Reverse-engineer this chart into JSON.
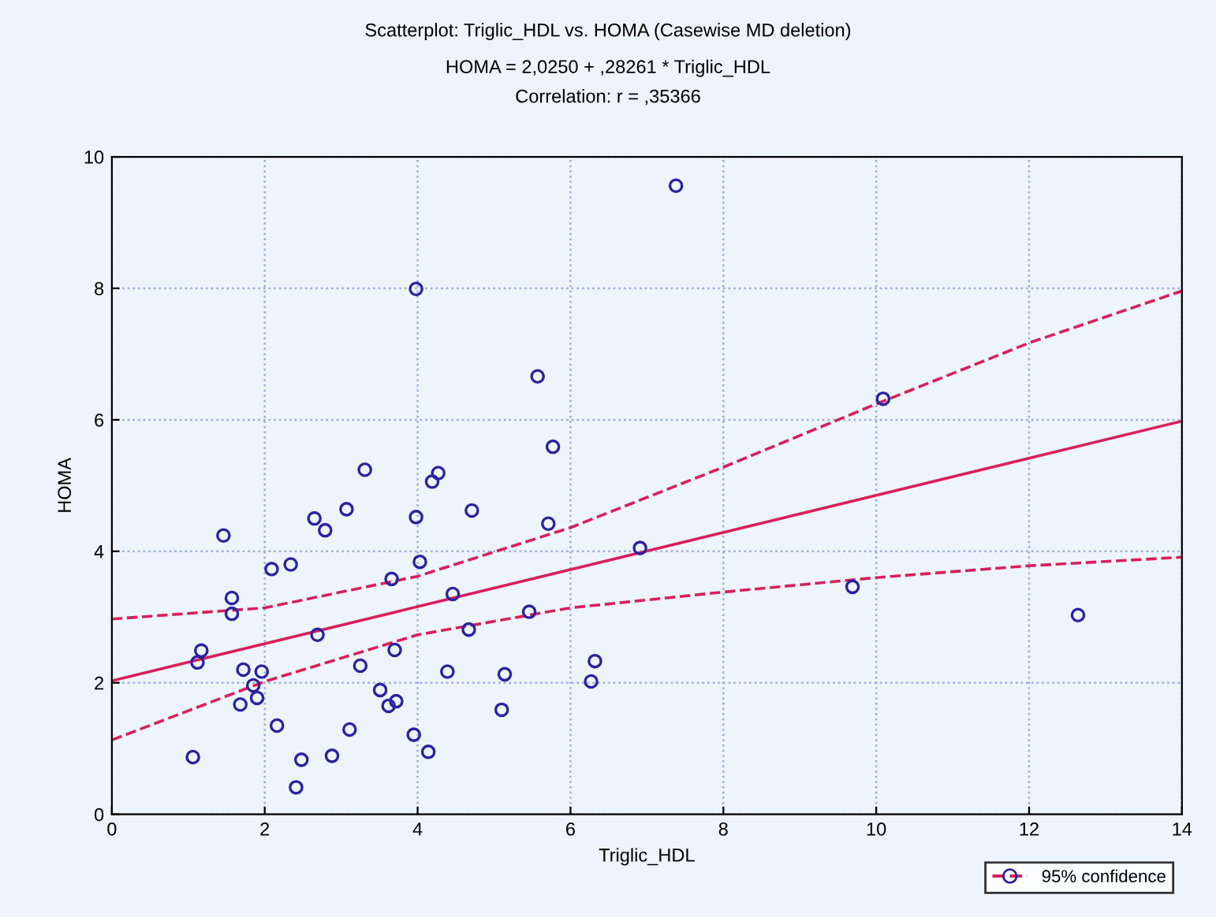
{
  "chart_data": {
    "type": "scatter",
    "title": "Scatterplot: Triglic_HDL vs. HOMA (Casewise MD deletion)",
    "subtitle": "HOMA = 2,0250 + ,28261 * Triglic_HDL\nCorrelation: r = ,35366",
    "xlabel": "Triglic_HDL",
    "ylabel": "HOMA",
    "xlim": [
      0,
      14
    ],
    "ylim": [
      0,
      10
    ],
    "xticks": [
      0,
      2,
      4,
      6,
      8,
      10,
      12,
      14
    ],
    "yticks": [
      0,
      2,
      4,
      6,
      8,
      10
    ],
    "grid": true,
    "legend": "bottom right",
    "marker": "circle",
    "series": [
      {
        "color": "#2a22a0",
        "x": [
          3.31,
          4.27,
          4.19,
          3.07,
          4.71,
          2.65,
          2.79,
          3.98,
          5.71,
          1.46,
          2.09,
          2.34,
          4.03,
          3.66,
          4.46,
          1.57,
          1.57,
          2.69,
          1.17,
          1.12,
          1.72,
          1.96,
          1.85,
          1.68,
          1.9,
          3.25,
          3.7,
          3.51,
          3.62,
          3.72,
          4.39,
          4.67,
          5.14,
          5.1,
          5.46,
          6.32,
          6.27,
          2.16,
          3.11,
          3.95,
          4.14,
          1.06,
          2.48,
          2.88,
          2.41,
          5.77,
          7.38,
          3.98,
          5.57,
          10.09,
          6.91,
          9.69,
          12.64
        ],
        "values": [
          5.24,
          5.19,
          5.06,
          4.64,
          4.62,
          4.5,
          4.32,
          4.52,
          4.42,
          4.24,
          3.73,
          3.8,
          3.84,
          3.58,
          3.35,
          3.29,
          3.05,
          2.73,
          2.49,
          2.31,
          2.2,
          2.17,
          1.96,
          1.67,
          1.77,
          2.26,
          2.5,
          1.89,
          1.65,
          1.72,
          2.17,
          2.81,
          2.13,
          1.59,
          3.08,
          2.33,
          2.02,
          1.35,
          1.29,
          1.21,
          0.95,
          0.87,
          0.83,
          0.89,
          0.41,
          5.59,
          9.56,
          7.99,
          6.66,
          6.32,
          4.05,
          3.46,
          3.03
        ]
      },
      {
        "type": "line",
        "color": "#d8205a",
        "line_style": "solid",
        "marker": "none",
        "x": [
          0,
          14
        ],
        "values": [
          2.03,
          5.98
        ]
      },
      {
        "type": "line",
        "name": "95% confidence",
        "color": "#d8205a",
        "line_style": "dashed",
        "marker": "none",
        "x": [
          0,
          2,
          4,
          6,
          8,
          10,
          12,
          14
        ],
        "values": [
          2.97,
          3.14,
          3.62,
          4.36,
          5.28,
          6.24,
          7.17,
          7.96
        ]
      },
      {
        "type": "line",
        "color": "#d8205a",
        "line_style": "dashed",
        "marker": "none",
        "x": [
          0,
          2,
          4,
          6,
          8,
          10,
          12,
          14
        ],
        "values": [
          1.13,
          2.02,
          2.73,
          3.14,
          3.38,
          3.6,
          3.78,
          3.91
        ]
      }
    ]
  }
}
